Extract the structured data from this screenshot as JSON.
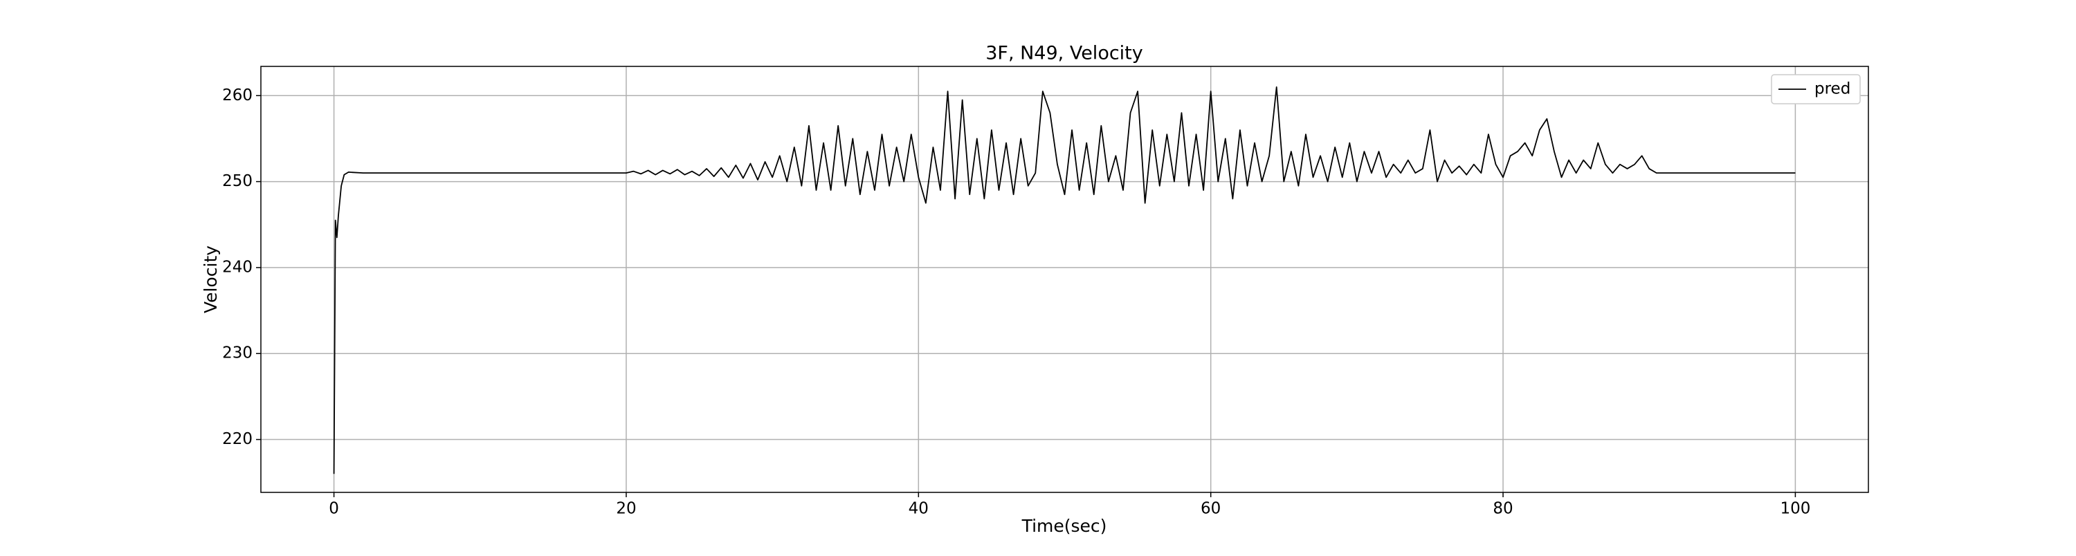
{
  "chart_data": {
    "type": "line",
    "title": "3F, N49, Velocity",
    "x_label": "Time(sec)",
    "y_label": "Velocity",
    "x": [
      0,
      0.1,
      0.2,
      0.3,
      0.5,
      0.7,
      1,
      2,
      5,
      10,
      15,
      20,
      20.5,
      21,
      21.5,
      22,
      22.5,
      23,
      23.5,
      24,
      24.5,
      25,
      25.5,
      26,
      26.5,
      27,
      27.5,
      28,
      28.5,
      29,
      29.5,
      30,
      30.5,
      31,
      31.5,
      32,
      32.5,
      33,
      33.5,
      34,
      34.5,
      35,
      35.5,
      36,
      36.5,
      37,
      37.5,
      38,
      38.5,
      39,
      39.5,
      40,
      40.5,
      41,
      41.5,
      42,
      42.5,
      43,
      43.5,
      44,
      44.5,
      45,
      45.5,
      46,
      46.5,
      47,
      47.5,
      48,
      48.5,
      49,
      49.5,
      50,
      50.5,
      51,
      51.5,
      52,
      52.5,
      53,
      53.5,
      54,
      54.5,
      55,
      55.5,
      56,
      56.5,
      57,
      57.5,
      58,
      58.5,
      59,
      59.5,
      60,
      60.5,
      61,
      61.5,
      62,
      62.5,
      63,
      63.5,
      64,
      64.5,
      65,
      65.5,
      66,
      66.5,
      67,
      67.5,
      68,
      68.5,
      69,
      69.5,
      70,
      70.5,
      71,
      71.5,
      72,
      72.5,
      73,
      73.5,
      74,
      74.5,
      75,
      75.5,
      76,
      76.5,
      77,
      77.5,
      78,
      78.5,
      79,
      79.5,
      80,
      80.5,
      81,
      81.5,
      82,
      82.5,
      83,
      83.5,
      84,
      84.5,
      85,
      85.5,
      86,
      86.5,
      87,
      87.5,
      88,
      88.5,
      89,
      89.5,
      90,
      90.5,
      100
    ],
    "series": [
      {
        "name": "pred",
        "color": "#000000",
        "values": [
          216,
          245.5,
          243.5,
          246,
          249.5,
          250.8,
          251.1,
          251,
          251,
          251,
          251,
          251,
          251.2,
          250.9,
          251.3,
          250.8,
          251.3,
          250.9,
          251.4,
          250.8,
          251.2,
          250.7,
          251.5,
          250.6,
          251.6,
          250.5,
          251.9,
          250.4,
          252.1,
          250.2,
          252.3,
          250.5,
          253,
          250,
          254,
          249.5,
          256.5,
          249,
          254.5,
          249,
          256.5,
          249.5,
          255,
          248.5,
          253.5,
          249,
          255.5,
          249.5,
          254,
          250,
          255.5,
          250.5,
          247.5,
          254,
          249,
          260.5,
          248,
          259.5,
          248.5,
          255,
          248,
          256,
          249,
          254.5,
          248.5,
          255,
          249.5,
          251,
          260.5,
          258,
          252,
          248.5,
          256,
          249,
          254.5,
          248.5,
          256.5,
          250,
          253,
          249,
          258,
          260.5,
          247.5,
          256,
          249.5,
          255.5,
          250,
          258,
          249.5,
          255.5,
          249,
          260.5,
          250,
          255,
          248,
          256,
          249.5,
          254.5,
          250,
          253,
          261,
          250,
          253.5,
          249.5,
          255.5,
          250.5,
          253,
          250,
          254,
          250.5,
          254.5,
          250,
          253.5,
          251,
          253.5,
          250.5,
          252,
          251,
          252.5,
          251,
          251.5,
          256,
          250,
          252.5,
          251,
          251.8,
          250.8,
          252,
          251,
          255.5,
          252,
          250.5,
          253,
          253.5,
          254.5,
          253,
          256,
          257.3,
          253.5,
          250.5,
          252.5,
          251,
          252.5,
          251.5,
          254.5,
          252,
          251,
          252,
          251.5,
          252,
          253,
          251.5,
          251,
          251
        ]
      }
    ],
    "xlim": [
      -5,
      105
    ],
    "ylim": [
      213.85,
      263.4
    ],
    "xticks": [
      0,
      20,
      40,
      60,
      80,
      100
    ],
    "yticks": [
      220,
      230,
      240,
      250,
      260
    ],
    "grid": true,
    "legend": "upper right"
  }
}
